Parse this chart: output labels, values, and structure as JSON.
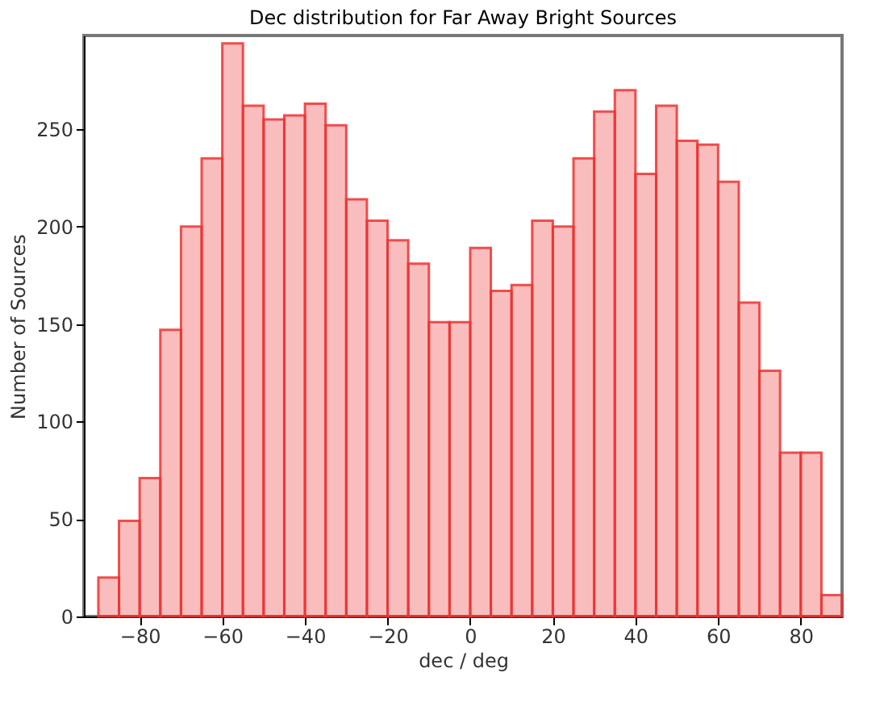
{
  "chart_data": {
    "type": "histogram",
    "title": "Dec distribution for Far Away Bright Sources",
    "xlabel": "dec / deg",
    "ylabel": "Number of Sources",
    "bins": [
      -90,
      -85,
      -80,
      -75,
      -70,
      -65,
      -60,
      -55,
      -50,
      -45,
      -40,
      -35,
      -30,
      -25,
      -20,
      -15,
      -10,
      -5,
      0,
      5,
      10,
      15,
      20,
      25,
      30,
      35,
      40,
      45,
      50,
      55,
      60,
      65,
      70,
      75,
      80,
      85,
      90
    ],
    "values": [
      20,
      49,
      71,
      147,
      200,
      235,
      294,
      262,
      255,
      257,
      263,
      252,
      214,
      203,
      193,
      181,
      151,
      151,
      189,
      167,
      170,
      203,
      200,
      235,
      259,
      270,
      227,
      262,
      244,
      242,
      223,
      161,
      126,
      84,
      84,
      11
    ],
    "color": "#ee3333",
    "xlim": [
      -93.5,
      90
    ],
    "ylim": [
      0,
      298
    ],
    "xticks": [
      -80,
      -60,
      -40,
      -20,
      0,
      20,
      40,
      60,
      80
    ],
    "yticks": [
      0,
      50,
      100,
      150,
      200,
      250
    ],
    "grid": false
  }
}
